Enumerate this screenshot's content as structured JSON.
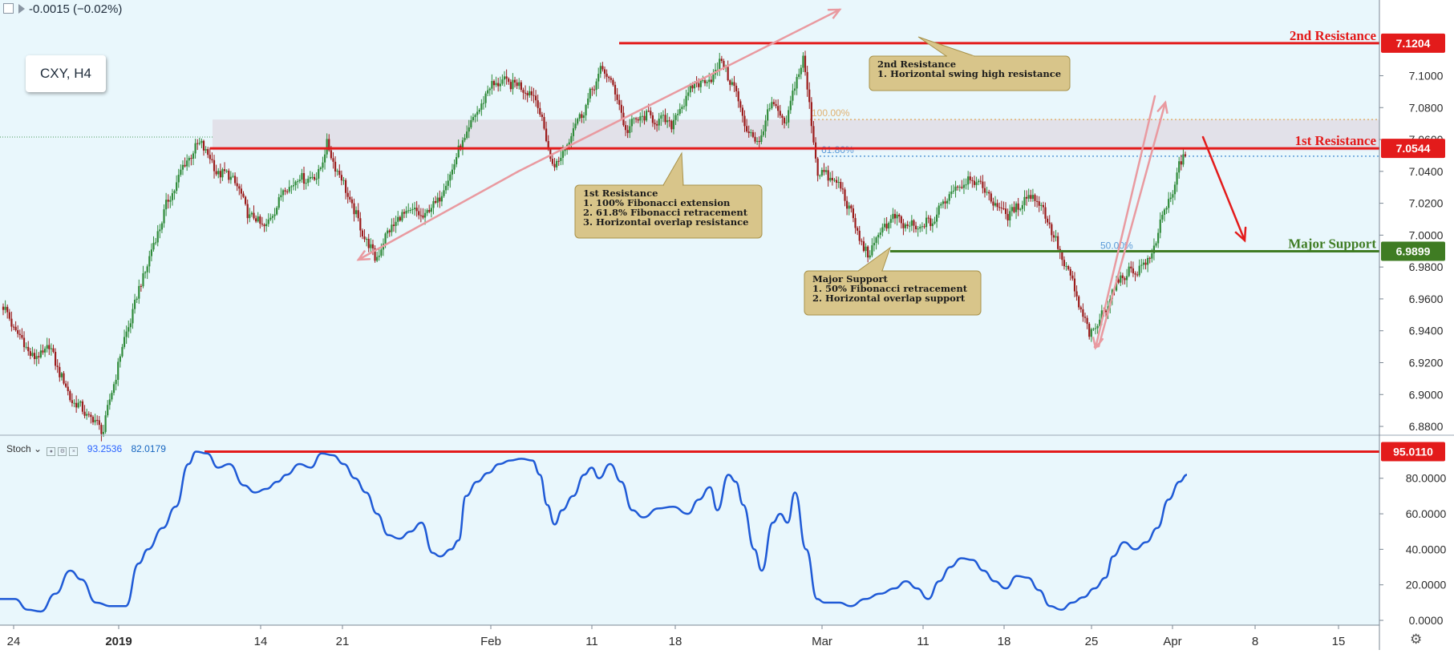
{
  "header": {
    "change_text": "-0.0015 (−0.02%)"
  },
  "symbol_box": {
    "label": "CXY, H4"
  },
  "stoch_panel": {
    "name": "Stoch",
    "k_value": "93.2536",
    "d_value": "82.0179"
  },
  "colors": {
    "background": "#e9f7fc",
    "up": "#2f8b3a",
    "down": "#9b1b1b",
    "resistance": "#e31b1b",
    "support": "#3f7c23",
    "stoch": "#1f5ad6",
    "note_fill": "#d8c58a",
    "note_border": "#a8924a",
    "pink_arrow": "#e99aa0",
    "fib_orange": "#e0b070",
    "fib_blue": "#5a9ad8"
  },
  "chart_data": [
    {
      "type": "candlestick",
      "title": "CXY, H4",
      "x_tick_labels": [
        "24",
        "2019",
        "14",
        "21",
        "Feb",
        "11",
        "18",
        "Mar",
        "11",
        "18",
        "25",
        "Apr",
        "8",
        "15"
      ],
      "y_tick_labels": [
        "7.1000",
        "7.0800",
        "7.0600",
        "7.0400",
        "7.0200",
        "7.0000",
        "6.9800",
        "6.9600",
        "6.9400",
        "6.9200",
        "6.9000",
        "6.8800"
      ],
      "ylim": [
        6.876,
        7.1475
      ],
      "anchors": [
        [
          0,
          6.955
        ],
        [
          5,
          6.942
        ],
        [
          15,
          6.922
        ],
        [
          22,
          6.93
        ],
        [
          32,
          6.898
        ],
        [
          42,
          6.885
        ],
        [
          48,
          6.878
        ],
        [
          56,
          6.925
        ],
        [
          66,
          6.97
        ],
        [
          78,
          7.018
        ],
        [
          88,
          7.048
        ],
        [
          95,
          7.058
        ],
        [
          102,
          7.04
        ],
        [
          110,
          7.036
        ],
        [
          118,
          7.012
        ],
        [
          126,
          7.005
        ],
        [
          134,
          7.028
        ],
        [
          142,
          7.036
        ],
        [
          150,
          7.036
        ],
        [
          155,
          7.056
        ],
        [
          162,
          7.035
        ],
        [
          170,
          7.008
        ],
        [
          178,
          6.985
        ],
        [
          186,
          7.006
        ],
        [
          194,
          7.015
        ],
        [
          202,
          7.012
        ],
        [
          210,
          7.026
        ],
        [
          218,
          7.052
        ],
        [
          226,
          7.075
        ],
        [
          234,
          7.095
        ],
        [
          242,
          7.096
        ],
        [
          250,
          7.092
        ],
        [
          256,
          7.084
        ],
        [
          262,
          7.047
        ],
        [
          266,
          7.045
        ],
        [
          272,
          7.065
        ],
        [
          280,
          7.084
        ],
        [
          286,
          7.104
        ],
        [
          292,
          7.095
        ],
        [
          298,
          7.066
        ],
        [
          306,
          7.075
        ],
        [
          314,
          7.072
        ],
        [
          320,
          7.07
        ],
        [
          326,
          7.084
        ],
        [
          332,
          7.096
        ],
        [
          338,
          7.097
        ],
        [
          344,
          7.109
        ],
        [
          350,
          7.092
        ],
        [
          356,
          7.066
        ],
        [
          362,
          7.058
        ],
        [
          368,
          7.084
        ],
        [
          374,
          7.068
        ],
        [
          379,
          7.093
        ],
        [
          383,
          7.112
        ],
        [
          386,
          7.08
        ],
        [
          390,
          7.04
        ],
        [
          396,
          7.036
        ],
        [
          402,
          7.028
        ],
        [
          408,
          7.005
        ],
        [
          414,
          6.986
        ],
        [
          420,
          7.003
        ],
        [
          426,
          7.011
        ],
        [
          432,
          7.006
        ],
        [
          438,
          7.004
        ],
        [
          446,
          7.01
        ],
        [
          452,
          7.025
        ],
        [
          458,
          7.032
        ],
        [
          464,
          7.036
        ],
        [
          470,
          7.028
        ],
        [
          476,
          7.018
        ],
        [
          482,
          7.012
        ],
        [
          488,
          7.022
        ],
        [
          494,
          7.025
        ],
        [
          500,
          7.01
        ],
        [
          506,
          6.988
        ],
        [
          512,
          6.97
        ],
        [
          516,
          6.952
        ],
        [
          520,
          6.938
        ],
        [
          524,
          6.943
        ],
        [
          530,
          6.962
        ],
        [
          536,
          6.975
        ],
        [
          542,
          6.978
        ],
        [
          548,
          6.983
        ],
        [
          552,
          6.996
        ],
        [
          556,
          7.019
        ],
        [
          560,
          7.022
        ],
        [
          563,
          7.046
        ],
        [
          566,
          7.051
        ]
      ],
      "horizontal_levels": [
        {
          "name": "2nd Resistance",
          "value": 7.1204,
          "label": "7.1204",
          "caption": "2nd Resistance"
        },
        {
          "name": "100% Fibonacci extension",
          "value": 7.0725,
          "label": "100.00%"
        },
        {
          "name": "1st Resistance",
          "value": 7.0544,
          "label": "7.0544",
          "caption": "1st Resistance"
        },
        {
          "name": "61.8% Fibonacci retracement",
          "value": 7.0495,
          "label": "61.80%"
        },
        {
          "name": "Major Support",
          "value": 6.9899,
          "label": "6.9899",
          "caption": "Major Support"
        },
        {
          "name": "50% Fibonacci retracement",
          "value": 6.9895,
          "label": "50.00%"
        }
      ],
      "annotations": [
        {
          "name": "note-2nd-resistance",
          "lines": [
            "2nd Resistance",
            "1. Horizontal swing high resistance"
          ]
        },
        {
          "name": "note-1st-resistance",
          "lines": [
            "1st Resistance",
            "1. 100% Fibonacci extension",
            "2. 61.8% Fibonacci retracement",
            "3. Horizontal overlap resistance"
          ]
        },
        {
          "name": "note-major-support",
          "lines": [
            "Major Support",
            "1. 50% Fibonacci retracement",
            "2. Horizontal overlap support"
          ]
        }
      ]
    },
    {
      "type": "line",
      "title": "Stoch",
      "y_tick_labels": [
        "80.0000",
        "60.0000",
        "40.0000",
        "20.0000",
        "0.0000"
      ],
      "ylim": [
        -2.7,
        102
      ],
      "level": {
        "value": 95.011,
        "label": "95.0110"
      },
      "series": [
        {
          "name": "Stoch",
          "points": [
            [
              0,
              12
            ],
            [
              8,
              12
            ],
            [
              15,
              6
            ],
            [
              22,
              5
            ],
            [
              30,
              15
            ],
            [
              38,
              28
            ],
            [
              44,
              23
            ],
            [
              52,
              10
            ],
            [
              60,
              8
            ],
            [
              68,
              8
            ],
            [
              75,
              32
            ],
            [
              80,
              40
            ],
            [
              88,
              52
            ],
            [
              95,
              64
            ],
            [
              102,
              88
            ],
            [
              106,
              95
            ],
            [
              112,
              94
            ],
            [
              118,
              86
            ],
            [
              124,
              88
            ],
            [
              132,
              76
            ],
            [
              138,
              72
            ],
            [
              144,
              74
            ],
            [
              150,
              78
            ],
            [
              155,
              82
            ],
            [
              162,
              88
            ],
            [
              168,
              86
            ],
            [
              174,
              94
            ],
            [
              180,
              93
            ],
            [
              186,
              88
            ],
            [
              192,
              80
            ],
            [
              198,
              72
            ],
            [
              204,
              60
            ],
            [
              210,
              48
            ],
            [
              216,
              46
            ],
            [
              222,
              50
            ],
            [
              228,
              55
            ],
            [
              234,
              38
            ],
            [
              238,
              36
            ],
            [
              244,
              40
            ],
            [
              248,
              45
            ],
            [
              252,
              70
            ],
            [
              258,
              78
            ],
            [
              264,
              83
            ],
            [
              270,
              88
            ],
            [
              276,
              90
            ],
            [
              282,
              91
            ],
            [
              288,
              90
            ],
            [
              292,
              82
            ],
            [
              296,
              65
            ],
            [
              300,
              54
            ],
            [
              304,
              62
            ],
            [
              310,
              70
            ],
            [
              316,
              82
            ],
            [
              320,
              86
            ],
            [
              324,
              80
            ],
            [
              330,
              88
            ],
            [
              336,
              78
            ],
            [
              342,
              62
            ],
            [
              348,
              58
            ],
            [
              356,
              63
            ],
            [
              364,
              64
            ],
            [
              372,
              60
            ],
            [
              378,
              68
            ],
            [
              384,
              75
            ],
            [
              388,
              62
            ],
            [
              394,
              82
            ],
            [
              398,
              78
            ],
            [
              402,
              65
            ],
            [
              408,
              40
            ],
            [
              412,
              28
            ],
            [
              418,
              55
            ],
            [
              422,
              60
            ],
            [
              426,
              55
            ],
            [
              430,
              72
            ],
            [
              436,
              40
            ],
            [
              442,
              12
            ],
            [
              446,
              10
            ],
            [
              454,
              10
            ],
            [
              460,
              8
            ],
            [
              468,
              12
            ],
            [
              476,
              15
            ],
            [
              484,
              18
            ],
            [
              490,
              22
            ],
            [
              496,
              18
            ],
            [
              502,
              12
            ],
            [
              508,
              22
            ],
            [
              514,
              30
            ],
            [
              520,
              35
            ],
            [
              526,
              34
            ],
            [
              532,
              28
            ],
            [
              538,
              22
            ],
            [
              544,
              18
            ],
            [
              550,
              25
            ],
            [
              556,
              24
            ],
            [
              562,
              17
            ],
            [
              568,
              8
            ],
            [
              574,
              6
            ],
            [
              580,
              10
            ],
            [
              586,
              13
            ],
            [
              592,
              18
            ],
            [
              598,
              24
            ],
            [
              602,
              36
            ],
            [
              608,
              44
            ],
            [
              614,
              40
            ],
            [
              620,
              44
            ],
            [
              626,
              52
            ],
            [
              632,
              68
            ],
            [
              638,
              78
            ],
            [
              642,
              82
            ]
          ]
        }
      ]
    }
  ]
}
